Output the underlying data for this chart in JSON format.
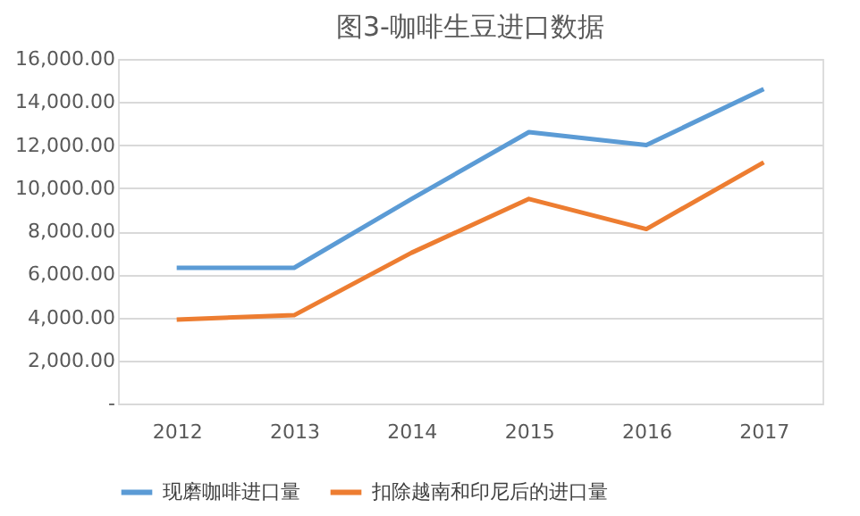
{
  "chart_data": {
    "type": "line",
    "title": "图3-咖啡生豆进口数据",
    "categories": [
      "2012",
      "2013",
      "2014",
      "2015",
      "2016",
      "2017"
    ],
    "series": [
      {
        "name": "现磨咖啡进口量",
        "color": "#5b9bd5",
        "values": [
          6300,
          6300,
          9500,
          12600,
          12000,
          14600
        ]
      },
      {
        "name": "扣除越南和印尼后的进口量",
        "color": "#ed7d31",
        "values": [
          3900,
          4100,
          7000,
          9500,
          8100,
          11200
        ]
      }
    ],
    "ylim": [
      0,
      16000
    ],
    "yticks": [
      {
        "value": 0,
        "label": "-"
      },
      {
        "value": 2000,
        "label": "2,000.00"
      },
      {
        "value": 4000,
        "label": "4,000.00"
      },
      {
        "value": 6000,
        "label": "6,000.00"
      },
      {
        "value": 8000,
        "label": "8,000.00"
      },
      {
        "value": 10000,
        "label": "10,000.00"
      },
      {
        "value": 12000,
        "label": "12,000.00"
      },
      {
        "value": 14000,
        "label": "14,000.00"
      },
      {
        "value": 16000,
        "label": "16,000.00"
      }
    ],
    "grid": "y",
    "legend": "bottom",
    "marker": "none",
    "line_style": "solid"
  }
}
